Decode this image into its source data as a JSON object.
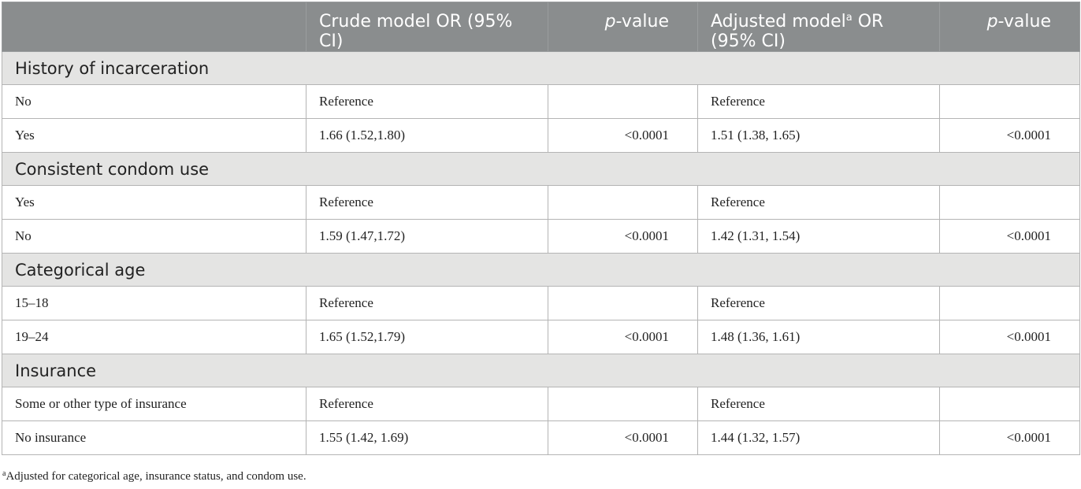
{
  "header": {
    "col0": "",
    "col1": "Crude model OR (95% CI)",
    "col2_italic": "p",
    "col2_rest": "-value",
    "col3_main": "Adjusted model",
    "col3_sup": "a",
    "col3_rest": " OR (95% CI)",
    "col4_italic": "p",
    "col4_rest": "-value"
  },
  "sections": [
    {
      "title": "History of incarceration",
      "rows": [
        {
          "label": "No",
          "crude": "Reference",
          "crude_p": "",
          "adj": "Reference",
          "adj_p": ""
        },
        {
          "label": "Yes",
          "crude": "1.66 (1.52,1.80)",
          "crude_p": "<0.0001",
          "adj": "1.51 (1.38, 1.65)",
          "adj_p": "<0.0001"
        }
      ]
    },
    {
      "title": "Consistent condom use",
      "rows": [
        {
          "label": "Yes",
          "crude": "Reference",
          "crude_p": "",
          "adj": "Reference",
          "adj_p": ""
        },
        {
          "label": "No",
          "crude": "1.59 (1.47,1.72)",
          "crude_p": "<0.0001",
          "adj": "1.42 (1.31, 1.54)",
          "adj_p": "<0.0001"
        }
      ]
    },
    {
      "title": "Categorical age",
      "rows": [
        {
          "label": "15–18",
          "crude": "Reference",
          "crude_p": "",
          "adj": "Reference",
          "adj_p": ""
        },
        {
          "label": "19–24",
          "crude": "1.65 (1.52,1.79)",
          "crude_p": "<0.0001",
          "adj": "1.48 (1.36, 1.61)",
          "adj_p": "<0.0001"
        }
      ]
    },
    {
      "title": "Insurance",
      "rows": [
        {
          "label": "Some or other type of insurance",
          "crude": "Reference",
          "crude_p": "",
          "adj": "Reference",
          "adj_p": ""
        },
        {
          "label": "No insurance",
          "crude": "1.55 (1.42, 1.69)",
          "crude_p": "<0.0001",
          "adj": "1.44 (1.32, 1.57)",
          "adj_p": "<0.0001"
        }
      ]
    }
  ],
  "footnote": {
    "marker": "a",
    "text": "Adjusted for categorical age, insurance status, and condom use."
  }
}
